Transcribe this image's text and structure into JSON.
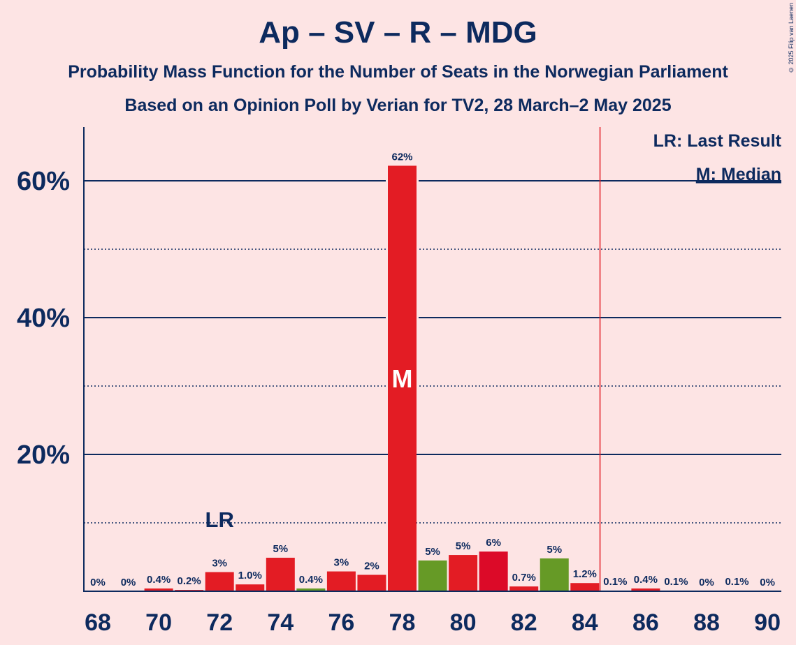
{
  "title": "Ap – SV – R – MDG",
  "subtitle1": "Probability Mass Function for the Number of Seats in the Norwegian Parliament",
  "subtitle2": "Based on an Opinion Poll by Verian for TV2, 28 March–2 May 2025",
  "copyright": "© 2025 Filip van Laenen",
  "legend": {
    "last_result": "LR: Last Result",
    "median": "M: Median"
  },
  "colors": {
    "background": "#fde4e4",
    "text": "#0d2a5e",
    "red": "#e31c24",
    "dark_red": "#dc0a28",
    "green": "#669a26",
    "majority_line": "#e31c24"
  },
  "chart_data": {
    "type": "bar",
    "x": [
      68,
      69,
      70,
      71,
      72,
      73,
      74,
      75,
      76,
      77,
      78,
      79,
      80,
      81,
      82,
      83,
      84,
      85,
      86,
      87,
      88,
      89,
      90
    ],
    "values": [
      0,
      0,
      0.4,
      0.2,
      2.8,
      1.0,
      4.9,
      0.4,
      2.9,
      2.4,
      62.2,
      4.5,
      5.3,
      5.8,
      0.7,
      4.8,
      1.2,
      0.1,
      0.4,
      0.1,
      0,
      0.1,
      0
    ],
    "labels": [
      "0%",
      "0%",
      "0.4%",
      "0.2%",
      "3%",
      "1.0%",
      "5%",
      "0.4%",
      "3%",
      "2%",
      "62%",
      "5%",
      "5%",
      "6%",
      "0.7%",
      "5%",
      "1.2%",
      "0.1%",
      "0.4%",
      "0.1%",
      "0%",
      "0.1%",
      "0%"
    ],
    "bar_colors": [
      "red",
      "red",
      "red",
      "red",
      "red",
      "red",
      "red",
      "green",
      "red",
      "red",
      "red",
      "green",
      "red",
      "dark_red",
      "red",
      "green",
      "red",
      "red",
      "red",
      "red",
      "red",
      "red",
      "red"
    ],
    "x_tick_labels": [
      "68",
      "70",
      "72",
      "74",
      "76",
      "78",
      "80",
      "82",
      "84",
      "86",
      "88",
      "90"
    ],
    "y_ticks": [
      0,
      10,
      20,
      30,
      40,
      50,
      60
    ],
    "y_tick_labels": [
      "20%",
      "40%",
      "60%"
    ],
    "ylim": [
      0,
      68
    ],
    "last_result_seat": 72,
    "last_result_label": "LR",
    "median_seat": 78,
    "median_label": "M",
    "majority_line_between": [
      84,
      85
    ]
  }
}
